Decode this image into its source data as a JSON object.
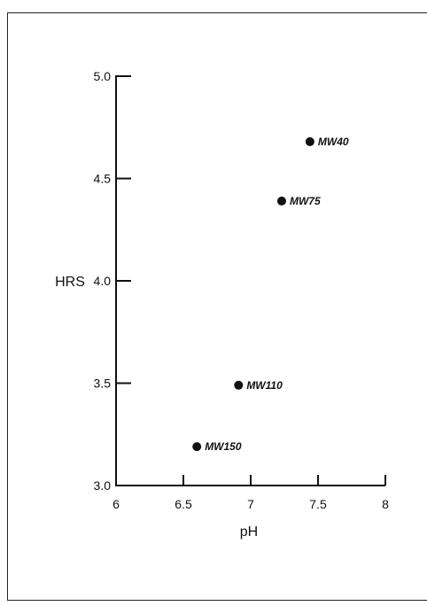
{
  "chart_data": {
    "type": "scatter",
    "xlabel": "pH",
    "ylabel": "HRS",
    "xlim": [
      6,
      8
    ],
    "ylim": [
      3.0,
      5.0
    ],
    "x_ticks": [
      "6",
      "6.5",
      "7",
      "7.5",
      "8"
    ],
    "x_tick_values": [
      6,
      6.5,
      7,
      7.5,
      8
    ],
    "y_ticks": [
      "3.0",
      "3.5",
      "4.0",
      "4.5",
      "5.0"
    ],
    "y_tick_values": [
      3.0,
      3.5,
      4.0,
      4.5,
      5.0
    ],
    "grid": false,
    "points": [
      {
        "label": "MW40",
        "x": 7.44,
        "y": 4.68
      },
      {
        "label": "MW75",
        "x": 7.23,
        "y": 4.39
      },
      {
        "label": "MW110",
        "x": 6.91,
        "y": 3.49
      },
      {
        "label": "MW150",
        "x": 6.6,
        "y": 3.19
      }
    ]
  }
}
